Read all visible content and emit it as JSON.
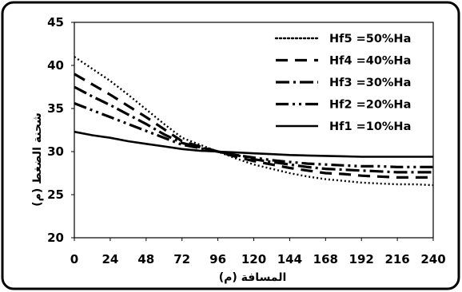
{
  "chart_data": {
    "type": "line",
    "xlabel": "المسافة (م)",
    "ylabel": "شحنة الضغط (م)",
    "x_ticks": [
      "0",
      "24",
      "48",
      "72",
      "96",
      "120",
      "144",
      "168",
      "192",
      "216",
      "240"
    ],
    "y_ticks": [
      "20",
      "25",
      "30",
      "35",
      "40",
      "45"
    ],
    "xlim": [
      0,
      240
    ],
    "ylim": [
      20,
      45
    ],
    "grid": false,
    "legend_position": "top-right",
    "x": [
      0,
      12,
      24,
      36,
      48,
      60,
      72,
      84,
      96,
      108,
      120,
      132,
      144,
      156,
      168,
      180,
      192,
      204,
      216,
      228,
      240
    ],
    "series": [
      {
        "name": "Hf5 =50%Ha",
        "style": "dotted",
        "values": [
          41.0,
          39.6,
          38.2,
          36.6,
          34.9,
          33.2,
          31.6,
          30.8,
          30.0,
          29.2,
          28.5,
          28.0,
          27.5,
          27.1,
          26.8,
          26.6,
          26.4,
          26.3,
          26.2,
          26.2,
          26.1
        ]
      },
      {
        "name": "Hf4 =40%Ha",
        "style": "long-dash",
        "values": [
          39.0,
          37.8,
          36.6,
          35.3,
          34.0,
          32.6,
          31.2,
          30.6,
          30.0,
          29.4,
          28.9,
          28.5,
          28.1,
          27.8,
          27.5,
          27.4,
          27.2,
          27.1,
          27.0,
          27.0,
          27.0
        ]
      },
      {
        "name": "Hf3 =30%Ha",
        "style": "dash-dot",
        "values": [
          37.5,
          36.4,
          35.4,
          34.3,
          33.2,
          32.0,
          31.0,
          30.5,
          30.0,
          29.6,
          29.1,
          28.8,
          28.5,
          28.2,
          28.0,
          27.9,
          27.8,
          27.7,
          27.6,
          27.6,
          27.6
        ]
      },
      {
        "name": "Hf2 =20%Ha",
        "style": "dash-dot-dot",
        "values": [
          35.6,
          34.8,
          34.0,
          33.2,
          32.4,
          31.6,
          30.8,
          30.4,
          30.0,
          29.6,
          29.3,
          29.0,
          28.8,
          28.6,
          28.5,
          28.4,
          28.3,
          28.3,
          28.2,
          28.2,
          28.2
        ]
      },
      {
        "name": "Hf1 =10%Ha",
        "style": "solid",
        "values": [
          32.3,
          31.9,
          31.6,
          31.2,
          30.9,
          30.6,
          30.3,
          30.1,
          30.0,
          29.9,
          29.8,
          29.7,
          29.6,
          29.55,
          29.5,
          29.45,
          29.4,
          29.4,
          29.4,
          29.4,
          29.4
        ]
      }
    ]
  }
}
